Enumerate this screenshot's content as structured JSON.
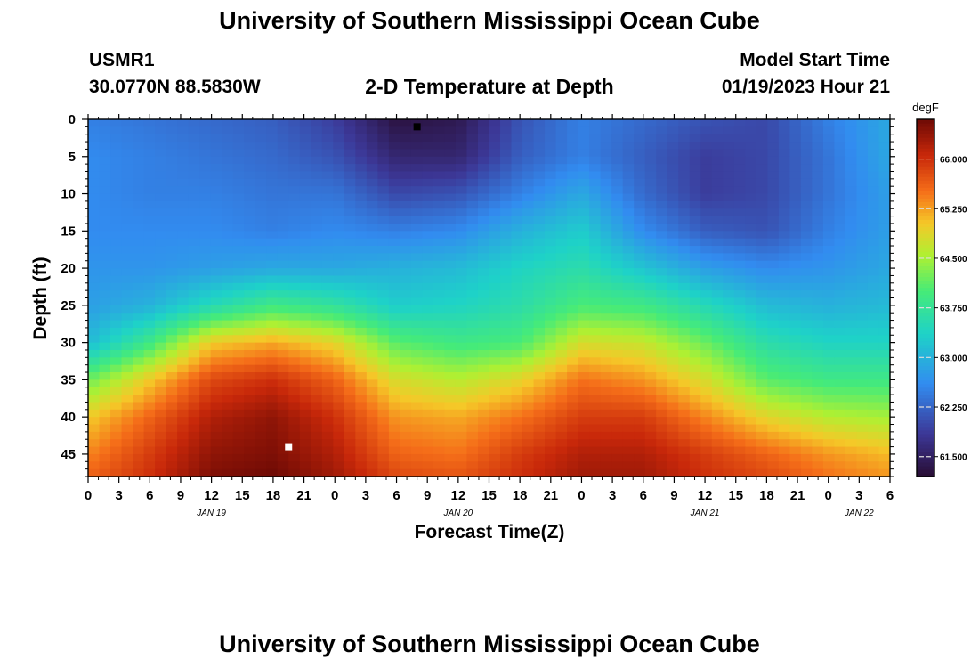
{
  "page": {
    "title_top": "University of Southern Mississippi Ocean Cube",
    "title_bottom": "University of Southern Mississippi Ocean Cube",
    "station_id": "USMR1",
    "station_coords": "30.0770N  88.5830W",
    "plot_title": "2-D Temperature at Depth",
    "model_start_label": "Model Start Time",
    "model_start_value": "01/19/2023 Hour 21"
  },
  "chart_data": {
    "type": "heatmap",
    "title": "2-D Temperature at Depth",
    "xlabel": "Forecast Time(Z)",
    "ylabel": "Depth (ft)",
    "x_unit": "forecast hours from 2023-01-19 00Z",
    "xlim": [
      0,
      78
    ],
    "ylim": [
      48,
      0
    ],
    "x_tick_labels": [
      "0",
      "3",
      "6",
      "9",
      "12",
      "15",
      "18",
      "21",
      "0",
      "3",
      "6",
      "9",
      "12",
      "15",
      "18",
      "21",
      "0",
      "3",
      "6",
      "9",
      "12",
      "15",
      "18",
      "21",
      "0",
      "3",
      "6"
    ],
    "y_ticks": [
      0,
      5,
      10,
      15,
      20,
      25,
      30,
      35,
      40,
      45
    ],
    "date_labels": [
      {
        "text": "JAN 19",
        "x": 12
      },
      {
        "text": "JAN 20",
        "x": 36
      },
      {
        "text": "JAN 21",
        "x": 60
      },
      {
        "text": "JAN 22",
        "x": 75
      }
    ],
    "colorbar": {
      "unit": "degF",
      "min": 61.2,
      "max": 66.6,
      "ticks": [
        "66.000",
        "65.250",
        "64.500",
        "63.750",
        "63.000",
        "62.250",
        "61.500"
      ],
      "tick_values": [
        66.0,
        65.25,
        64.5,
        63.75,
        63.0,
        62.25,
        61.5
      ]
    },
    "min_marker": {
      "x": 32,
      "depth": 1
    },
    "max_marker": {
      "x": 19.5,
      "depth": 44
    },
    "grid": false,
    "legend": "colorbar-right",
    "times": [
      0,
      6,
      12,
      18,
      24,
      30,
      36,
      42,
      48,
      54,
      60,
      66,
      72,
      78
    ],
    "depths": [
      0,
      5,
      10,
      15,
      20,
      25,
      30,
      35,
      40,
      45,
      48
    ],
    "values": [
      [
        62.5,
        62.4,
        62.3,
        62.2,
        61.9,
        61.3,
        61.4,
        62.1,
        62.5,
        62.3,
        62.1,
        62.0,
        62.5,
        62.9
      ],
      [
        62.6,
        62.5,
        62.4,
        62.3,
        62.1,
        61.6,
        61.6,
        62.2,
        62.5,
        62.2,
        61.9,
        62.0,
        62.4,
        62.9
      ],
      [
        62.6,
        62.5,
        62.5,
        62.4,
        62.4,
        62.0,
        62.1,
        62.5,
        62.9,
        62.3,
        61.9,
        62.0,
        62.4,
        62.8
      ],
      [
        62.6,
        62.6,
        62.6,
        62.5,
        62.6,
        62.5,
        62.6,
        63.0,
        63.3,
        62.6,
        62.2,
        62.1,
        62.5,
        62.8
      ],
      [
        62.7,
        62.7,
        62.8,
        62.9,
        62.9,
        63.0,
        63.1,
        63.4,
        63.6,
        63.2,
        62.8,
        62.6,
        62.7,
        62.9
      ],
      [
        62.8,
        63.0,
        63.5,
        63.9,
        63.7,
        63.3,
        63.4,
        63.6,
        64.0,
        63.9,
        63.5,
        63.1,
        63.0,
        63.1
      ],
      [
        63.1,
        63.9,
        65.0,
        65.2,
        64.9,
        64.1,
        63.9,
        64.0,
        64.8,
        64.7,
        64.2,
        63.6,
        63.4,
        63.4
      ],
      [
        64.2,
        65.0,
        65.8,
        66.0,
        65.6,
        64.8,
        64.6,
        64.9,
        65.5,
        65.3,
        64.8,
        64.1,
        63.9,
        63.9
      ],
      [
        65.0,
        65.6,
        66.2,
        66.4,
        66.0,
        65.3,
        65.2,
        65.5,
        65.9,
        65.9,
        65.4,
        64.9,
        64.6,
        64.5
      ],
      [
        65.4,
        65.9,
        66.4,
        66.5,
        66.2,
        65.6,
        65.5,
        65.9,
        66.2,
        66.2,
        65.9,
        65.6,
        65.3,
        65.1
      ],
      [
        65.6,
        66.0,
        66.5,
        66.6,
        66.3,
        65.8,
        65.7,
        66.0,
        66.3,
        66.3,
        66.0,
        65.8,
        65.5,
        65.3
      ]
    ]
  }
}
